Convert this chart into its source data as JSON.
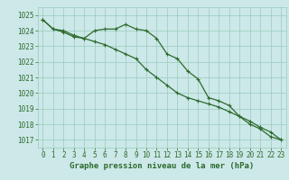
{
  "x": [
    0,
    1,
    2,
    3,
    4,
    5,
    6,
    7,
    8,
    9,
    10,
    11,
    12,
    13,
    14,
    15,
    16,
    17,
    18,
    19,
    20,
    21,
    22,
    23
  ],
  "line1": [
    1024.7,
    1024.1,
    1024.0,
    1023.7,
    1023.5,
    1024.0,
    1024.1,
    1024.1,
    1024.4,
    1024.1,
    1024.0,
    1023.5,
    1022.5,
    1022.2,
    1021.4,
    1020.9,
    1019.7,
    1019.5,
    1019.2,
    1018.5,
    1018.0,
    1017.7,
    1017.2,
    1017.0
  ],
  "line2": [
    1024.7,
    1024.1,
    1023.9,
    1023.6,
    1023.5,
    1023.3,
    1023.1,
    1022.8,
    1022.5,
    1022.2,
    1021.5,
    1021.0,
    1020.5,
    1020.0,
    1019.7,
    1019.5,
    1019.3,
    1019.1,
    1018.8,
    1018.5,
    1018.2,
    1017.8,
    1017.5,
    1017.0
  ],
  "ylim": [
    1016.5,
    1025.5
  ],
  "xlim": [
    -0.5,
    23.5
  ],
  "yticks": [
    1017,
    1018,
    1019,
    1020,
    1021,
    1022,
    1023,
    1024,
    1025
  ],
  "xticks": [
    0,
    1,
    2,
    3,
    4,
    5,
    6,
    7,
    8,
    9,
    10,
    11,
    12,
    13,
    14,
    15,
    16,
    17,
    18,
    19,
    20,
    21,
    22,
    23
  ],
  "xlabel": "Graphe pression niveau de la mer (hPa)",
  "line_color": "#2d6a2d",
  "bg_color": "#cce8e8",
  "grid_color": "#99ccbb",
  "text_color": "#2d6a2d",
  "tick_color": "#2d6a2d",
  "marker": "+",
  "markersize": 3,
  "linewidth": 0.9,
  "xlabel_fontsize": 6.5,
  "tick_fontsize": 5.5
}
